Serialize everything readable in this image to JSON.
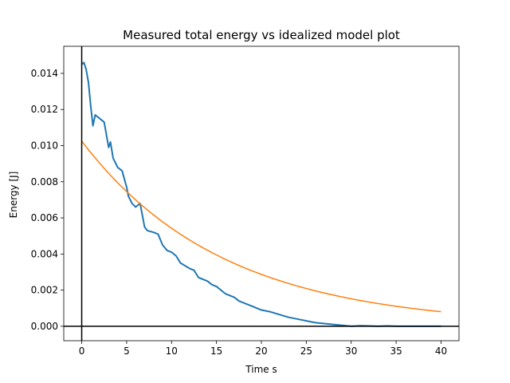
{
  "chart_data": {
    "type": "line",
    "title": "Measured total energy vs idealized model plot",
    "xlabel": "Time s",
    "ylabel": "Energy [J]",
    "xlim": [
      -2,
      42
    ],
    "ylim": [
      -0.0008,
      0.0155
    ],
    "xticks": [
      0,
      5,
      10,
      15,
      20,
      25,
      30,
      35,
      40
    ],
    "xtick_labels": [
      "0",
      "5",
      "10",
      "15",
      "20",
      "25",
      "30",
      "35",
      "40"
    ],
    "yticks": [
      0.0,
      0.002,
      0.004,
      0.006,
      0.008,
      0.01,
      0.012,
      0.014
    ],
    "ytick_labels": [
      "0.000",
      "0.002",
      "0.004",
      "0.006",
      "0.008",
      "0.010",
      "0.012",
      "0.014"
    ],
    "grid": false,
    "legend": false,
    "reference_lines": {
      "vertical_x": 0,
      "horizontal_y": 0,
      "color": "#000000"
    },
    "series": [
      {
        "color": "#1f77b4",
        "x": [
          0,
          0.25,
          0.5,
          0.75,
          1.0,
          1.25,
          1.5,
          2.0,
          2.5,
          3.0,
          3.2,
          3.5,
          4.0,
          4.5,
          5.0,
          5.2,
          5.6,
          6.0,
          6.5,
          7.0,
          7.3,
          8.0,
          8.5,
          9.0,
          9.5,
          10.0,
          10.5,
          11.0,
          12.0,
          12.5,
          13.0,
          13.5,
          14.0,
          14.5,
          15.0,
          16.0,
          17.0,
          17.5,
          18.0,
          19.0,
          20.0,
          21.0,
          22.0,
          23.0,
          24.0,
          25.0,
          26.0,
          27.0,
          28.0,
          29.0,
          30.0,
          31.0,
          32.0,
          33.0,
          34.0,
          35.0,
          37.0,
          40.0
        ],
        "y": [
          0.0145,
          0.0146,
          0.0142,
          0.0135,
          0.0122,
          0.0111,
          0.0117,
          0.0115,
          0.0113,
          0.0099,
          0.0102,
          0.0093,
          0.0088,
          0.0086,
          0.0077,
          0.0072,
          0.0068,
          0.0066,
          0.0068,
          0.0055,
          0.0053,
          0.0052,
          0.0051,
          0.0045,
          0.0042,
          0.0041,
          0.0039,
          0.0035,
          0.0032,
          0.0031,
          0.0027,
          0.0026,
          0.0025,
          0.0023,
          0.0022,
          0.0018,
          0.0016,
          0.0014,
          0.0013,
          0.0011,
          0.0009,
          0.0008,
          0.00065,
          0.0005,
          0.0004,
          0.0003,
          0.0002,
          0.00015,
          0.0001,
          5e-05,
          0.0,
          3e-05,
          2e-05,
          0.0,
          2e-05,
          0.0,
          0.0,
          0.0
        ]
      },
      {
        "color": "#ff7f0e",
        "function": "exponential_decay",
        "a": 0.01025,
        "k": 0.0636,
        "x_range": [
          0,
          40
        ]
      }
    ]
  }
}
